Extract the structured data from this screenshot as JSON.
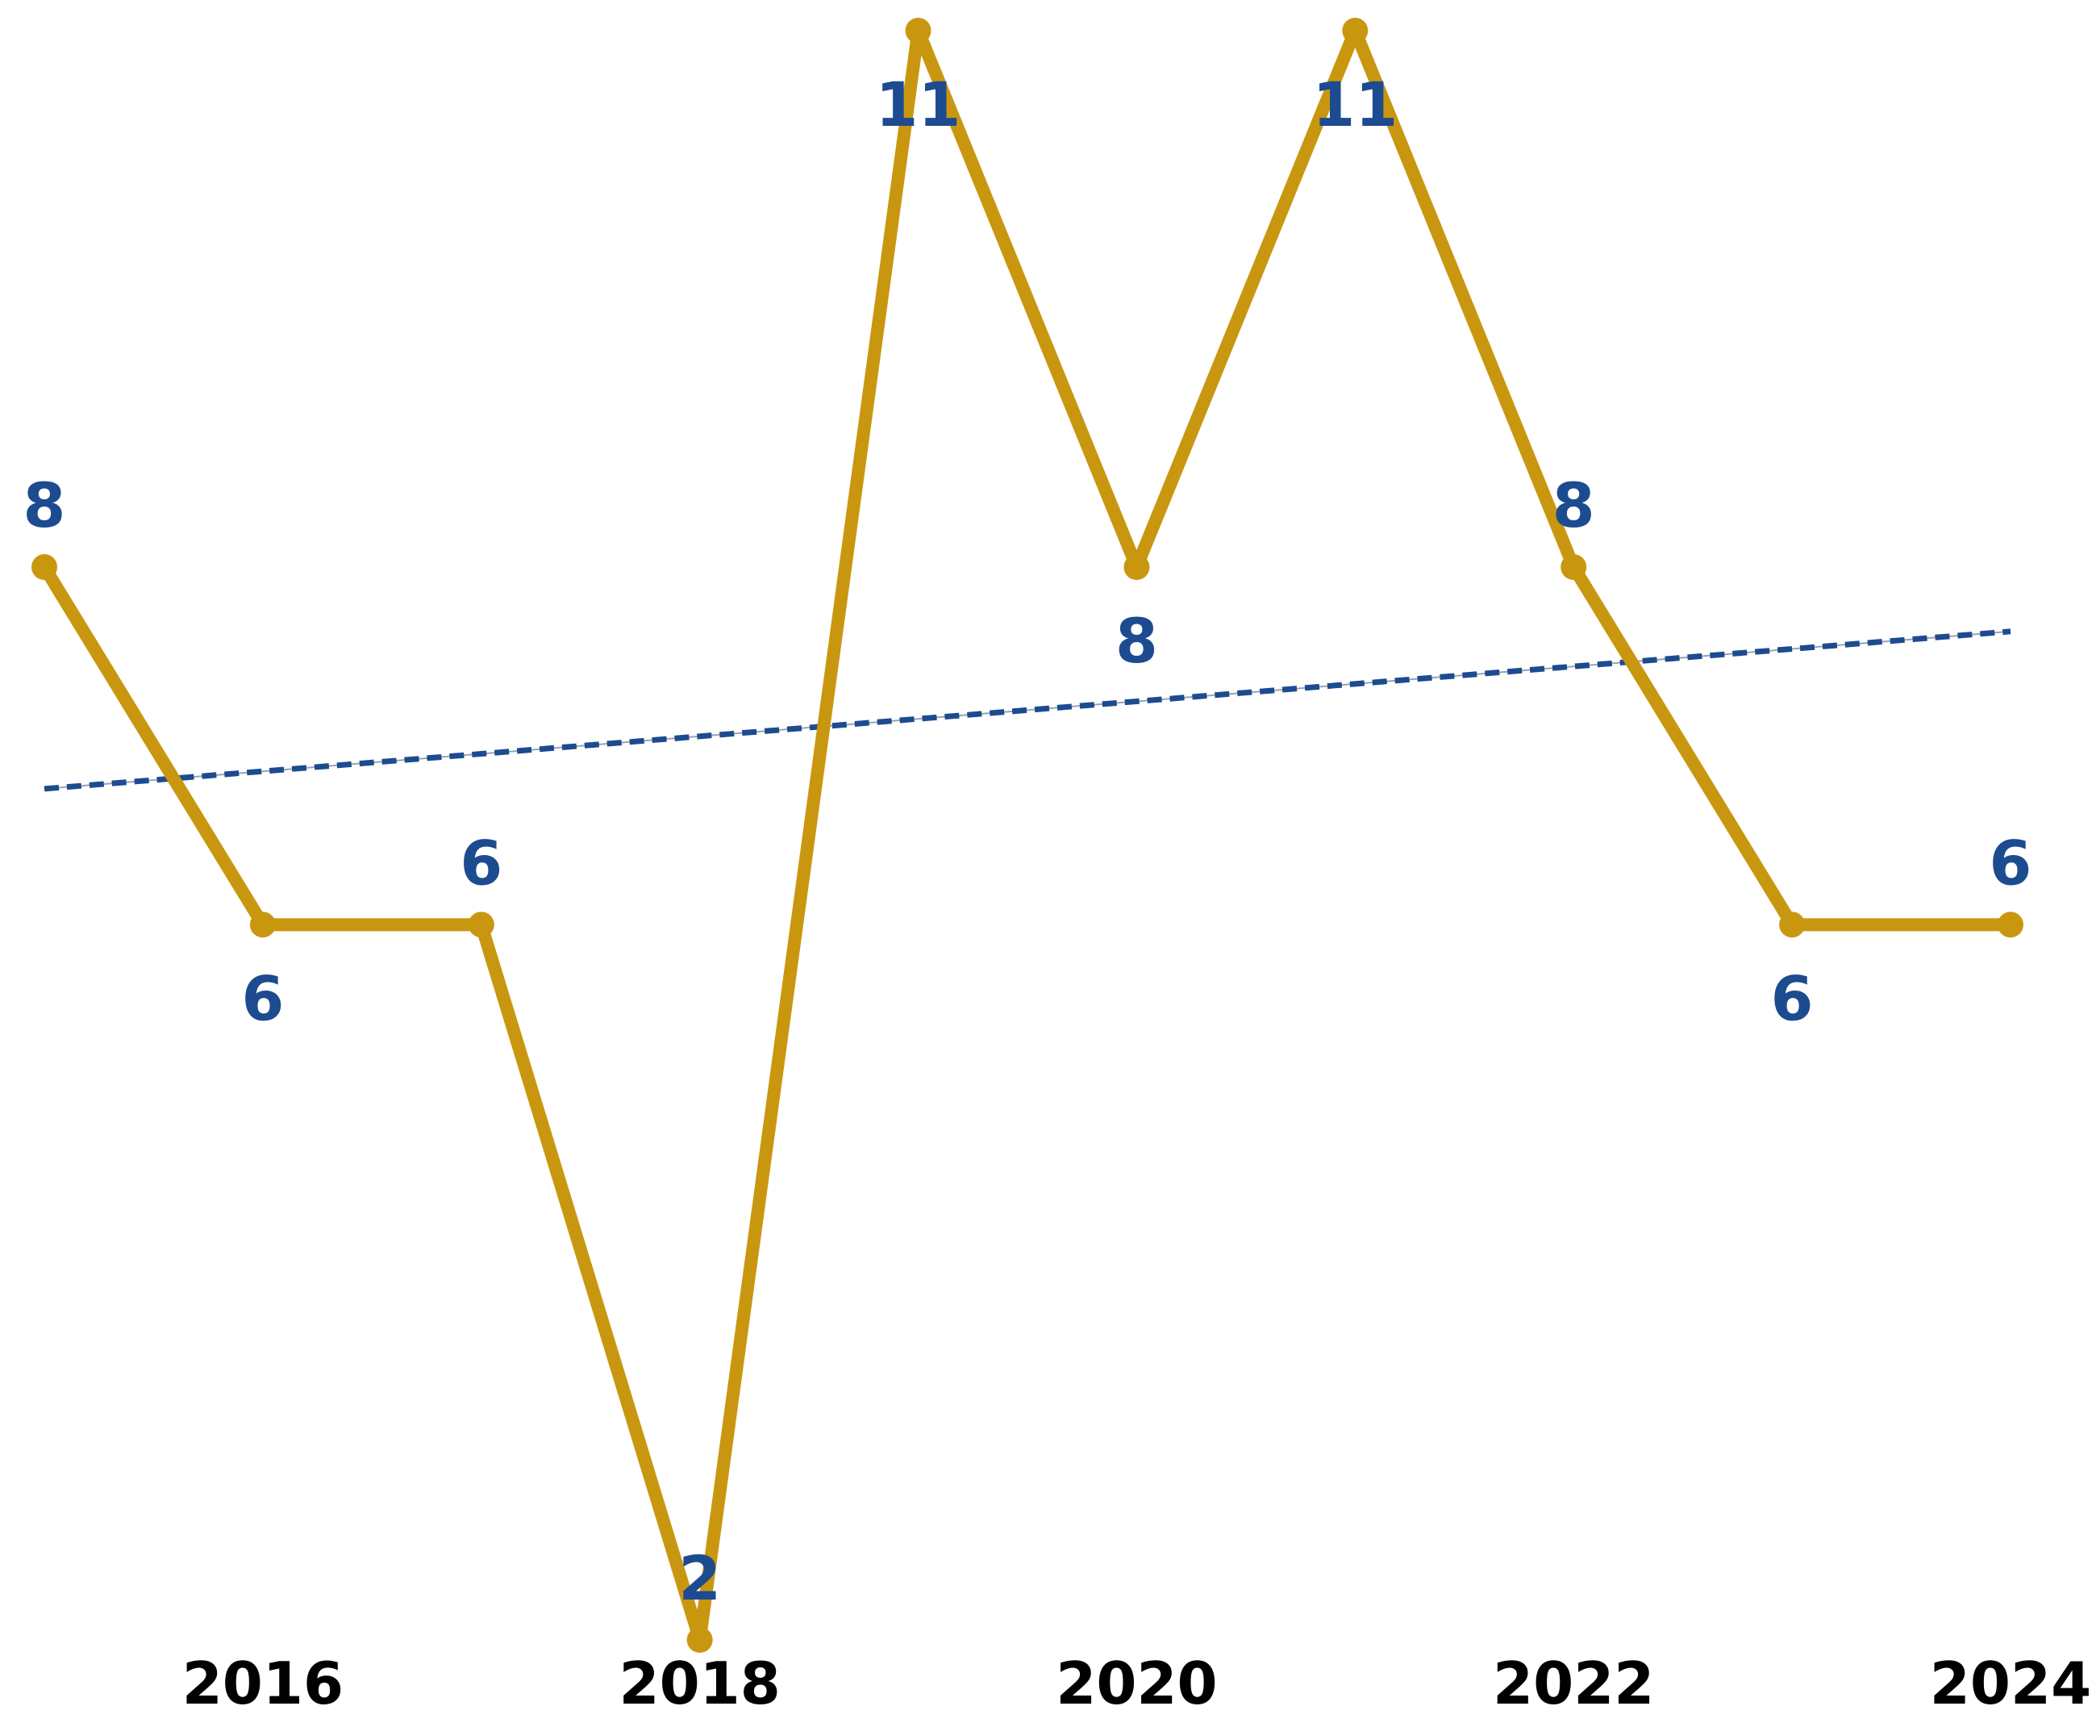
{
  "chart_data": {
    "type": "line",
    "title": "",
    "xlabel": "",
    "ylabel": "",
    "x": [
      2015,
      2016,
      2017,
      2018,
      2019,
      2020,
      2021,
      2022,
      2023,
      2024
    ],
    "x_tick_labels": [
      "2016",
      "2018",
      "2020",
      "2022",
      "2024"
    ],
    "x_tick_values": [
      2016,
      2018,
      2020,
      2022,
      2024
    ],
    "ylim": [
      2,
      11
    ],
    "y_axis_visible": false,
    "grid": false,
    "legend": "none",
    "series": [
      {
        "values": [
          8,
          6,
          6,
          2,
          11,
          8,
          11,
          8,
          6,
          6
        ],
        "data_labels": [
          "8",
          "6",
          "6",
          "2",
          "11",
          "8",
          "11",
          "8",
          "6",
          "6"
        ],
        "label_side": [
          "above",
          "below",
          "above",
          "above",
          "below",
          "below",
          "below",
          "above",
          "below",
          "above"
        ],
        "color": "#c9970f",
        "marker": "circle"
      }
    ],
    "trendline": {
      "type": "linear",
      "start": [
        2015,
        6.76
      ],
      "end": [
        2024,
        7.64
      ],
      "color": "#1d4b8f",
      "style": "dashed"
    },
    "colors": {
      "line": "#c9970f",
      "data_label": "#1d4b8f",
      "trendline": "#1d4b8f",
      "tick_label": "#000000"
    }
  }
}
